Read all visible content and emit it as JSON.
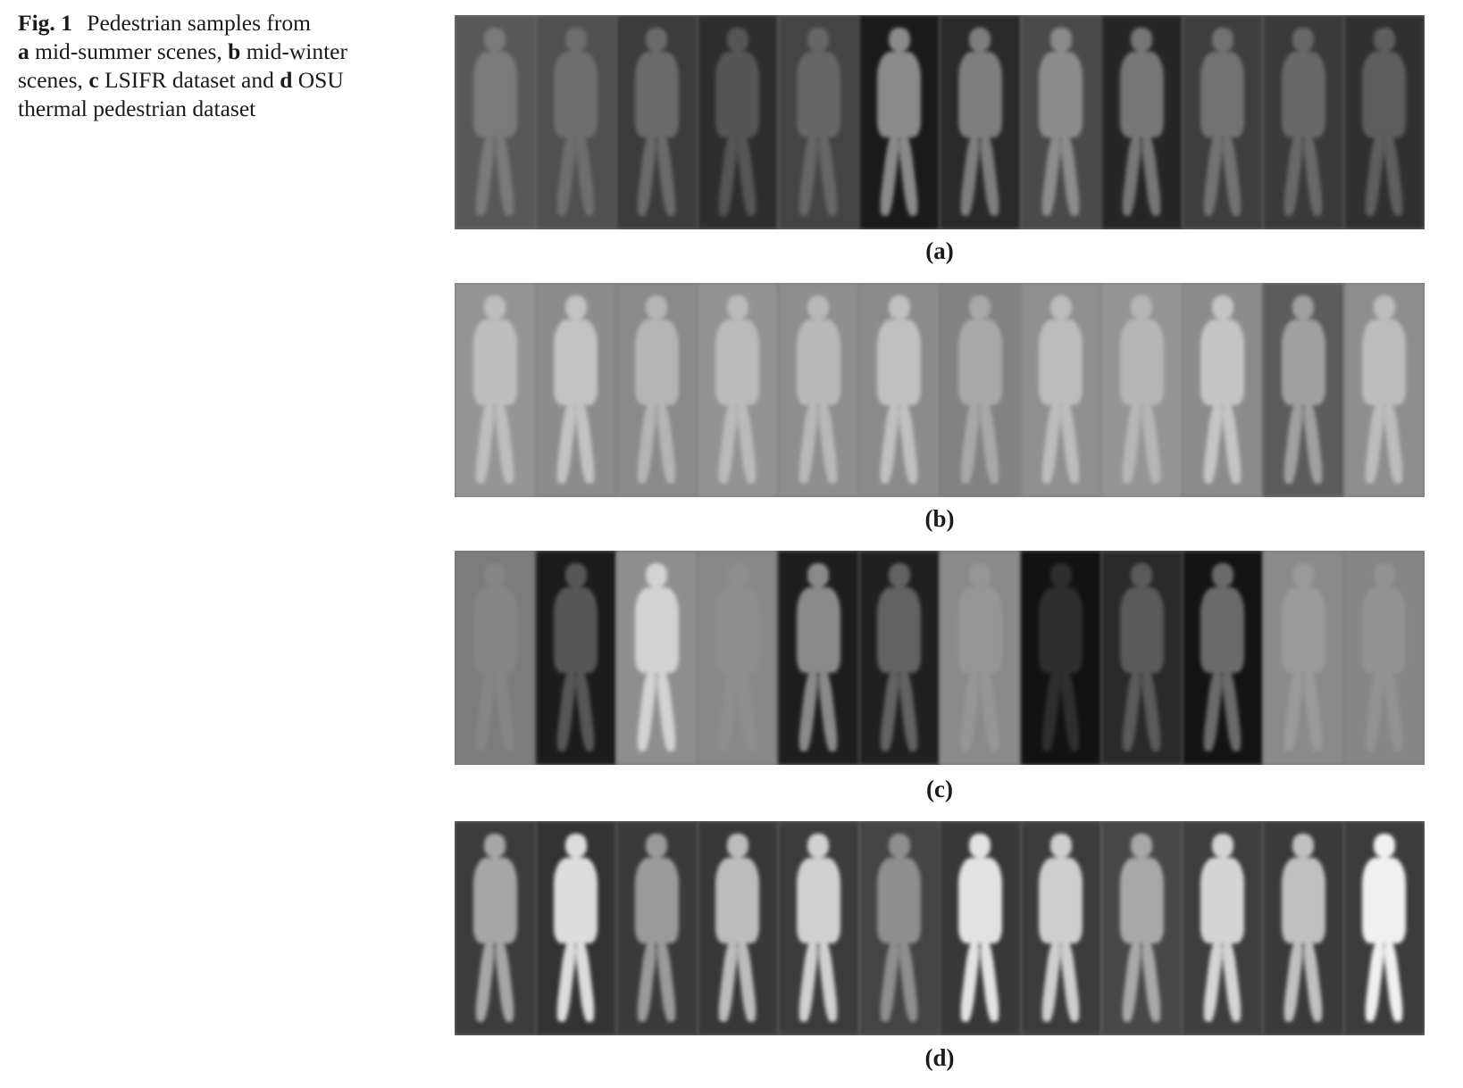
{
  "caption": {
    "fig_label": "Fig. 1",
    "text_before_a": "Pedestrian samples from",
    "a": "a",
    "a_text": "mid-summer scenes,",
    "b": "b",
    "b_text": "mid-winter scenes,",
    "c": "c",
    "c_text": "LSIFR dataset and",
    "d": "d",
    "d_text": "OSU thermal pedestrian dataset"
  },
  "panels": [
    {
      "label": "(a)",
      "samples": [
        {
          "bg": "#585858",
          "fg": "#7a7a7a"
        },
        {
          "bg": "#505050",
          "fg": "#6e6e6e"
        },
        {
          "bg": "#3c3c3c",
          "fg": "#6a6a6a"
        },
        {
          "bg": "#2e2e2e",
          "fg": "#555555"
        },
        {
          "bg": "#444444",
          "fg": "#666666"
        },
        {
          "bg": "#1a1a1a",
          "fg": "#8a8a8a"
        },
        {
          "bg": "#2a2a2a",
          "fg": "#7e7e7e"
        },
        {
          "bg": "#4a4a4a",
          "fg": "#8c8c8c"
        },
        {
          "bg": "#262626",
          "fg": "#767676"
        },
        {
          "bg": "#3e3e3e",
          "fg": "#727272"
        },
        {
          "bg": "#3a3a3a",
          "fg": "#686868"
        },
        {
          "bg": "#303030",
          "fg": "#5e5e5e"
        }
      ]
    },
    {
      "label": "(b)",
      "samples": [
        {
          "bg": "#959595",
          "fg": "#bebebe"
        },
        {
          "bg": "#8c8c8c",
          "fg": "#c2c2c2"
        },
        {
          "bg": "#8a8a8a",
          "fg": "#b4b4b4"
        },
        {
          "bg": "#939393",
          "fg": "#bababa"
        },
        {
          "bg": "#8e8e8e",
          "fg": "#b8b8b8"
        },
        {
          "bg": "#8b8b8b",
          "fg": "#c0c0c0"
        },
        {
          "bg": "#828282",
          "fg": "#a8a8a8"
        },
        {
          "bg": "#8f8f8f",
          "fg": "#bcbcbc"
        },
        {
          "bg": "#959595",
          "fg": "#b6b6b6"
        },
        {
          "bg": "#8c8c8c",
          "fg": "#c4c4c4"
        },
        {
          "bg": "#5c5c5c",
          "fg": "#a0a0a0"
        },
        {
          "bg": "#8e8e8e",
          "fg": "#bcbcbc"
        }
      ]
    },
    {
      "label": "(c)",
      "samples": [
        {
          "bg": "#7c7c7c",
          "fg": "#858585"
        },
        {
          "bg": "#1c1c1c",
          "fg": "#565656"
        },
        {
          "bg": "#8e8e8e",
          "fg": "#d2d2d2"
        },
        {
          "bg": "#888888",
          "fg": "#8e8e8e"
        },
        {
          "bg": "#1e1e1e",
          "fg": "#8a8a8a"
        },
        {
          "bg": "#202020",
          "fg": "#626262"
        },
        {
          "bg": "#8a8a8a",
          "fg": "#969696"
        },
        {
          "bg": "#121212",
          "fg": "#2e2e2e"
        },
        {
          "bg": "#2a2a2a",
          "fg": "#5a5a5a"
        },
        {
          "bg": "#141414",
          "fg": "#6a6a6a"
        },
        {
          "bg": "#8a8a8a",
          "fg": "#9a9a9a"
        },
        {
          "bg": "#868686",
          "fg": "#929292"
        }
      ]
    },
    {
      "label": "(d)",
      "samples": [
        {
          "bg": "#3c3c3c",
          "fg": "#a6a6a6"
        },
        {
          "bg": "#333333",
          "fg": "#dcdcdc"
        },
        {
          "bg": "#3a3a3a",
          "fg": "#9a9a9a"
        },
        {
          "bg": "#383838",
          "fg": "#bcbcbc"
        },
        {
          "bg": "#3c3c3c",
          "fg": "#d0d0d0"
        },
        {
          "bg": "#444444",
          "fg": "#8e8e8e"
        },
        {
          "bg": "#383838",
          "fg": "#e2e2e2"
        },
        {
          "bg": "#3c3c3c",
          "fg": "#cecece"
        },
        {
          "bg": "#484848",
          "fg": "#a8a8a8"
        },
        {
          "bg": "#3e3e3e",
          "fg": "#d4d4d4"
        },
        {
          "bg": "#3a3a3a",
          "fg": "#c0c0c0"
        },
        {
          "bg": "#3c3c3c",
          "fg": "#f0f0f0"
        }
      ]
    }
  ]
}
